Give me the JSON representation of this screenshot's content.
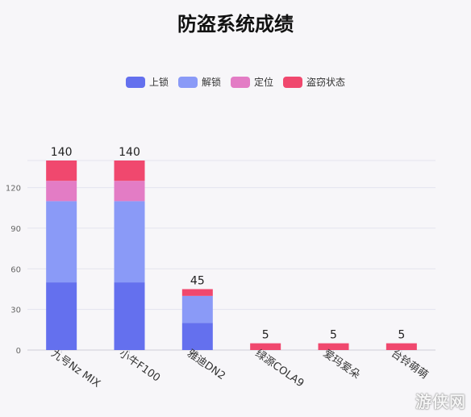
{
  "chart_data": {
    "type": "bar",
    "stacked": true,
    "title": "防盗系统成绩",
    "categories": [
      "九号Nz MIX",
      "小牛F100",
      "雅迪DN2",
      "绿源COLA9",
      "爱玛爱朵",
      "台铃萌萌"
    ],
    "series": [
      {
        "name": "上锁",
        "color": "#6470ee",
        "values": [
          50,
          50,
          20,
          0,
          0,
          0
        ]
      },
      {
        "name": "解锁",
        "color": "#8a9af7",
        "values": [
          60,
          60,
          20,
          0,
          0,
          0
        ]
      },
      {
        "name": "定位",
        "color": "#e37cc5",
        "values": [
          15,
          15,
          0,
          0,
          0,
          0
        ]
      },
      {
        "name": "盗窃状态",
        "color": "#f0486e",
        "values": [
          15,
          15,
          5,
          5,
          5,
          5
        ]
      }
    ],
    "totals": [
      "140",
      "140",
      "45",
      "5",
      "5",
      "5"
    ],
    "yticks": [
      0,
      30,
      60,
      90,
      120
    ],
    "ylim": [
      0,
      150
    ],
    "legend_position": "top-center",
    "grid": true
  },
  "watermark": "游侠网"
}
